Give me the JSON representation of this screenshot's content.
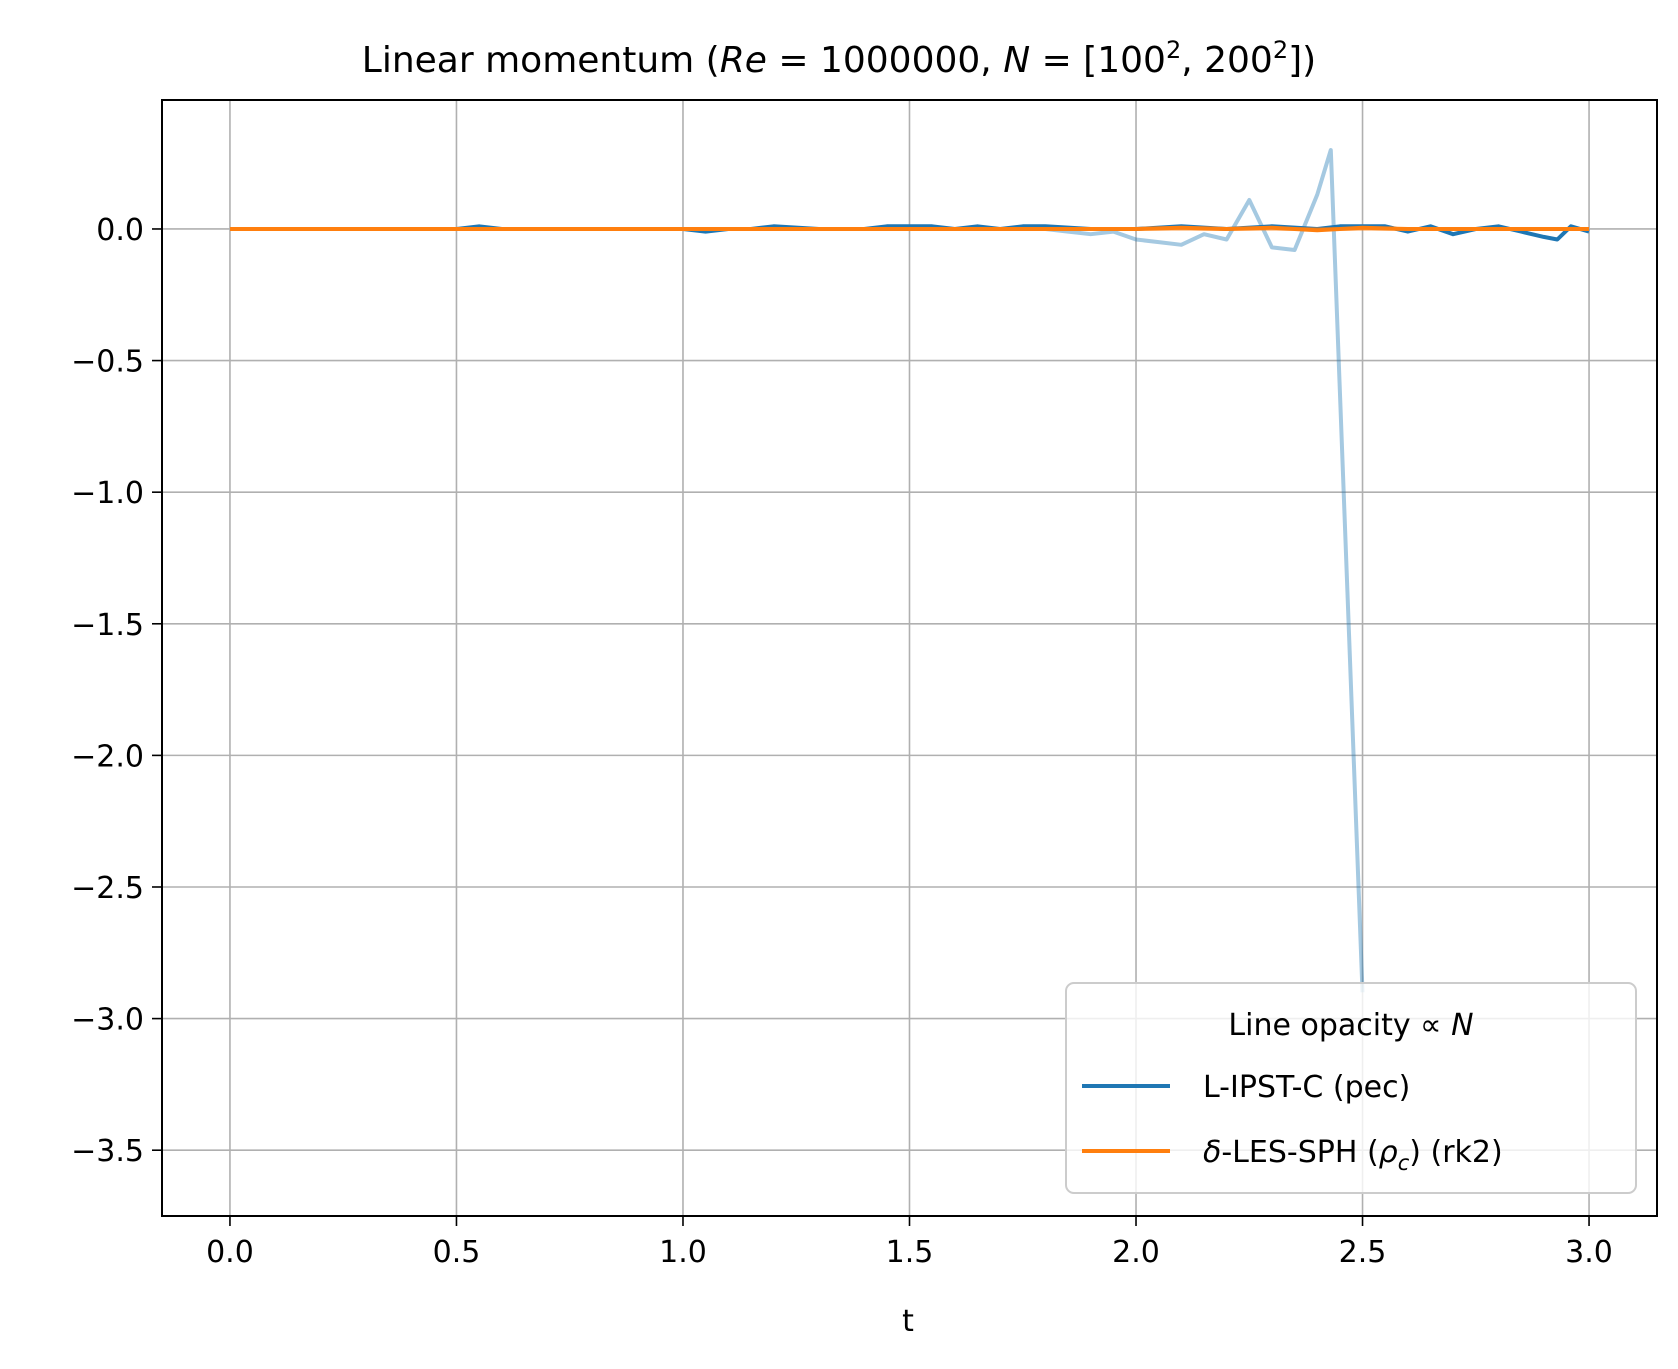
{
  "chart_data": {
    "type": "line",
    "title_parts": {
      "main": "Linear momentum  (",
      "re_label": "Re",
      "eq1": " = 1000000, ",
      "n_label": "N",
      "eq2": " = [100",
      "exp1": "2",
      "mid": ", 200",
      "exp2": "2",
      "end": "])"
    },
    "xlabel": "t",
    "ylabel": "",
    "xlim": [
      -0.15,
      3.15
    ],
    "ylim": [
      -3.75,
      0.49
    ],
    "xticks": [
      0.0,
      0.5,
      1.0,
      1.5,
      2.0,
      2.5,
      3.0
    ],
    "xtick_labels": [
      "0.0",
      "0.5",
      "1.0",
      "1.5",
      "2.0",
      "2.5",
      "3.0"
    ],
    "yticks": [
      0.0,
      -0.5,
      -1.0,
      -1.5,
      -2.0,
      -2.5,
      -3.0,
      -3.5
    ],
    "ytick_labels": [
      "0.0",
      "−0.5",
      "−1.0",
      "−1.5",
      "−2.0",
      "−2.5",
      "−3.0",
      "−3.5"
    ],
    "grid": true,
    "legend": {
      "placement": "lower-right",
      "title_text": "Line opacity  ∝  ",
      "title_var": "N",
      "entries": [
        {
          "series": "L-IPST-C (pec)",
          "color": "#1f77b4",
          "parts": {
            "pre": "L-IPST-C (pec)"
          }
        },
        {
          "series": "δ-LES-SPH (ρc) (rk2)",
          "color": "#ff7f0e",
          "parts": {
            "delta": "δ",
            "pre": "-LES-SPH (",
            "rho": "ρ",
            "sub": "c",
            "post": ") (rk2)"
          }
        }
      ]
    },
    "series": [
      {
        "name": "L-IPST-C (pec)",
        "resolution": "100^2",
        "color": "#1f77b4",
        "opacity": 0.4,
        "x": [
          0.0,
          0.05,
          0.1,
          0.15,
          0.2,
          0.25,
          0.3,
          0.35,
          0.4,
          0.45,
          0.5,
          0.55,
          0.6,
          0.65,
          0.7,
          0.75,
          0.8,
          0.85,
          0.9,
          0.95,
          1.0,
          1.05,
          1.1,
          1.15,
          1.2,
          1.25,
          1.3,
          1.35,
          1.4,
          1.45,
          1.5,
          1.55,
          1.6,
          1.65,
          1.7,
          1.75,
          1.8,
          1.85,
          1.9,
          1.95,
          2.0,
          2.05,
          2.1,
          2.15,
          2.2,
          2.25,
          2.3,
          2.35,
          2.4,
          2.43,
          2.5
        ],
        "y": [
          0.0,
          0.0,
          0.0,
          0.0,
          0.0,
          0.0,
          0.0,
          0.0,
          0.0,
          0.0,
          0.0,
          0.0,
          0.0,
          0.0,
          0.0,
          0.0,
          0.0,
          0.0,
          0.0,
          0.0,
          0.0,
          0.0,
          0.0,
          0.0,
          0.0,
          0.0,
          0.0,
          0.0,
          0.0,
          0.0,
          0.0,
          0.0,
          0.0,
          0.0,
          0.0,
          0.0,
          0.0,
          -0.01,
          -0.02,
          -0.01,
          -0.04,
          -0.05,
          -0.06,
          -0.02,
          -0.04,
          0.11,
          -0.07,
          -0.08,
          0.13,
          0.3,
          -2.9
        ]
      },
      {
        "name": "L-IPST-C (pec)",
        "resolution": "200^2",
        "color": "#1f77b4",
        "opacity": 1.0,
        "x": [
          0.0,
          0.1,
          0.2,
          0.3,
          0.4,
          0.5,
          0.55,
          0.6,
          0.7,
          0.8,
          0.9,
          1.0,
          1.05,
          1.1,
          1.15,
          1.2,
          1.3,
          1.4,
          1.45,
          1.5,
          1.55,
          1.6,
          1.65,
          1.7,
          1.75,
          1.8,
          1.9,
          2.0,
          2.1,
          2.2,
          2.3,
          2.4,
          2.45,
          2.5,
          2.55,
          2.6,
          2.65,
          2.7,
          2.75,
          2.8,
          2.85,
          2.9,
          2.93,
          2.96,
          3.0
        ],
        "y": [
          0.0,
          0.0,
          0.0,
          0.0,
          0.0,
          0.0,
          0.01,
          0.0,
          0.0,
          0.0,
          0.0,
          0.0,
          -0.01,
          0.0,
          0.0,
          0.01,
          0.0,
          0.0,
          0.01,
          0.01,
          0.01,
          0.0,
          0.01,
          0.0,
          0.01,
          0.01,
          0.0,
          0.0,
          0.01,
          0.0,
          0.01,
          0.0,
          0.01,
          0.01,
          0.01,
          -0.01,
          0.01,
          -0.02,
          0.0,
          0.01,
          -0.01,
          -0.03,
          -0.04,
          0.01,
          -0.01
        ]
      },
      {
        "name": "δ-LES-SPH (ρc) (rk2)",
        "resolution": "100^2",
        "color": "#ff7f0e",
        "opacity": 0.4,
        "x": [
          0.0,
          0.5,
          1.0,
          1.5,
          2.0,
          2.5,
          3.0
        ],
        "y": [
          0.0,
          0.0,
          0.0,
          0.0,
          0.0,
          0.0,
          0.0
        ]
      },
      {
        "name": "δ-LES-SPH (ρc) (rk2)",
        "resolution": "200^2",
        "color": "#ff7f0e",
        "opacity": 1.0,
        "x": [
          0.0,
          0.25,
          0.5,
          0.75,
          1.0,
          1.25,
          1.5,
          1.75,
          2.0,
          2.1,
          2.2,
          2.3,
          2.4,
          2.5,
          2.6,
          2.7,
          2.8,
          2.9,
          3.0
        ],
        "y": [
          0.0,
          0.0,
          0.0,
          0.0,
          0.0,
          0.0,
          0.0,
          0.0,
          0.0,
          0.005,
          0.0,
          0.005,
          -0.005,
          0.005,
          0.0,
          0.0,
          0.0,
          0.0,
          0.0
        ]
      }
    ]
  }
}
